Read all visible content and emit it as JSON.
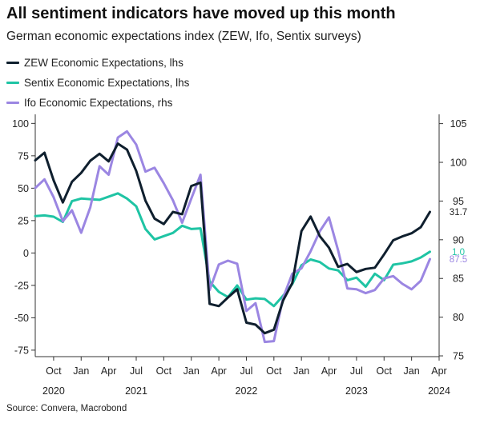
{
  "header": {
    "title": "All sentiment indicators have moved up this month",
    "subtitle": "German economic expectations index (ZEW, Ifo, Sentix surveys)"
  },
  "footer": {
    "source": "Source: Convera, Macrobond"
  },
  "colors": {
    "zew": "#0f1f2e",
    "sentix": "#1fc4a4",
    "ifo": "#9b86e2",
    "axis": "#333333"
  },
  "chart_data": {
    "type": "line",
    "x_range": [
      "2020-08",
      "2024-04"
    ],
    "x_ticks": [
      {
        "date": "2020-10",
        "label": "Oct",
        "year": "2020"
      },
      {
        "date": "2021-01",
        "label": "Jan"
      },
      {
        "date": "2021-04",
        "label": "Apr"
      },
      {
        "date": "2021-07",
        "label": "Jul",
        "year": "2021"
      },
      {
        "date": "2021-10",
        "label": "Oct"
      },
      {
        "date": "2022-01",
        "label": "Jan"
      },
      {
        "date": "2022-04",
        "label": "Apr"
      },
      {
        "date": "2022-07",
        "label": "Jul",
        "year": "2022"
      },
      {
        "date": "2022-10",
        "label": "Oct"
      },
      {
        "date": "2023-01",
        "label": "Jan"
      },
      {
        "date": "2023-04",
        "label": "Apr"
      },
      {
        "date": "2023-07",
        "label": "Jul",
        "year": "2023"
      },
      {
        "date": "2023-10",
        "label": "Oct"
      },
      {
        "date": "2024-01",
        "label": "Jan"
      },
      {
        "date": "2024-04",
        "label": "Apr",
        "year": "2024"
      }
    ],
    "y_left": {
      "range": [
        -80,
        107
      ],
      "ticks": [
        100,
        75,
        50,
        25,
        0,
        -25,
        -50,
        -75
      ]
    },
    "y_right": {
      "range": [
        74.9,
        106.2
      ],
      "ticks": [
        105,
        100,
        95,
        90,
        85,
        80,
        75
      ]
    },
    "series": [
      {
        "name": "ZEW Economic Expectations, lhs",
        "axis": "left",
        "color_key": "zew",
        "end_label": "31.7",
        "points": [
          [
            "2020-08",
            71.5
          ],
          [
            "2020-09",
            77.4
          ],
          [
            "2020-10",
            56.1
          ],
          [
            "2020-11",
            39.0
          ],
          [
            "2020-12",
            55.0
          ],
          [
            "2021-01",
            61.8
          ],
          [
            "2021-02",
            71.2
          ],
          [
            "2021-03",
            76.6
          ],
          [
            "2021-04",
            70.7
          ],
          [
            "2021-05",
            84.4
          ],
          [
            "2021-06",
            79.8
          ],
          [
            "2021-07",
            63.3
          ],
          [
            "2021-08",
            40.4
          ],
          [
            "2021-09",
            26.5
          ],
          [
            "2021-10",
            22.3
          ],
          [
            "2021-11",
            31.7
          ],
          [
            "2021-12",
            29.9
          ],
          [
            "2022-01",
            51.7
          ],
          [
            "2022-02",
            54.3
          ],
          [
            "2022-03",
            -39.3
          ],
          [
            "2022-04",
            -41.0
          ],
          [
            "2022-05",
            -34.3
          ],
          [
            "2022-06",
            -28.0
          ],
          [
            "2022-07",
            -53.8
          ],
          [
            "2022-08",
            -55.3
          ],
          [
            "2022-09",
            -61.9
          ],
          [
            "2022-10",
            -59.2
          ],
          [
            "2022-11",
            -36.7
          ],
          [
            "2022-12",
            -23.3
          ],
          [
            "2023-01",
            16.9
          ],
          [
            "2023-02",
            28.1
          ],
          [
            "2023-03",
            13.0
          ],
          [
            "2023-04",
            4.1
          ],
          [
            "2023-05",
            -10.7
          ],
          [
            "2023-06",
            -8.5
          ],
          [
            "2023-07",
            -14.7
          ],
          [
            "2023-08",
            -12.3
          ],
          [
            "2023-09",
            -11.4
          ],
          [
            "2023-10",
            -1.1
          ],
          [
            "2023-11",
            9.8
          ],
          [
            "2023-12",
            12.8
          ],
          [
            "2024-01",
            15.2
          ],
          [
            "2024-02",
            19.9
          ],
          [
            "2024-03",
            31.7
          ]
        ]
      },
      {
        "name": "Sentix Economic Expectations, lhs",
        "axis": "left",
        "color_key": "sentix",
        "end_label": "1.0",
        "points": [
          [
            "2020-08",
            28.5
          ],
          [
            "2020-09",
            29.0
          ],
          [
            "2020-10",
            28.0
          ],
          [
            "2020-11",
            24.0
          ],
          [
            "2020-12",
            40.0
          ],
          [
            "2021-01",
            42.0
          ],
          [
            "2021-02",
            41.5
          ],
          [
            "2021-03",
            41.0
          ],
          [
            "2021-04",
            43.5
          ],
          [
            "2021-05",
            46.0
          ],
          [
            "2021-06",
            42.0
          ],
          [
            "2021-07",
            36.0
          ],
          [
            "2021-08",
            18.5
          ],
          [
            "2021-09",
            10.5
          ],
          [
            "2021-10",
            13.0
          ],
          [
            "2021-11",
            15.5
          ],
          [
            "2021-12",
            21.0
          ],
          [
            "2022-01",
            18.5
          ],
          [
            "2022-02",
            19.0
          ],
          [
            "2022-03",
            -22.0
          ],
          [
            "2022-04",
            -30.0
          ],
          [
            "2022-05",
            -34.0
          ],
          [
            "2022-06",
            -25.0
          ],
          [
            "2022-07",
            -36.0
          ],
          [
            "2022-08",
            -35.0
          ],
          [
            "2022-09",
            -35.5
          ],
          [
            "2022-10",
            -41.0
          ],
          [
            "2022-11",
            -33.0
          ],
          [
            "2022-12",
            -24.0
          ],
          [
            "2023-01",
            -9.5
          ],
          [
            "2023-02",
            -5.0
          ],
          [
            "2023-03",
            -7.0
          ],
          [
            "2023-04",
            -12.0
          ],
          [
            "2023-05",
            -13.5
          ],
          [
            "2023-06",
            -21.0
          ],
          [
            "2023-07",
            -19.0
          ],
          [
            "2023-08",
            -26.0
          ],
          [
            "2023-09",
            -16.0
          ],
          [
            "2023-10",
            -21.0
          ],
          [
            "2023-11",
            -9.0
          ],
          [
            "2023-12",
            -8.0
          ],
          [
            "2024-01",
            -6.5
          ],
          [
            "2024-02",
            -3.5
          ],
          [
            "2024-03",
            1.0
          ]
        ]
      },
      {
        "name": "Ifo Economic Expectations, rhs",
        "axis": "right",
        "color_key": "ifo",
        "end_label": "87.5",
        "points": [
          [
            "2020-08",
            96.7
          ],
          [
            "2020-09",
            97.8
          ],
          [
            "2020-10",
            95.5
          ],
          [
            "2020-11",
            92.4
          ],
          [
            "2020-12",
            93.8
          ],
          [
            "2021-01",
            90.9
          ],
          [
            "2021-02",
            94.2
          ],
          [
            "2021-03",
            99.5
          ],
          [
            "2021-04",
            98.4
          ],
          [
            "2021-05",
            103.2
          ],
          [
            "2021-06",
            104.0
          ],
          [
            "2021-07",
            102.3
          ],
          [
            "2021-08",
            98.8
          ],
          [
            "2021-09",
            99.3
          ],
          [
            "2021-10",
            97.3
          ],
          [
            "2021-11",
            95.1
          ],
          [
            "2021-12",
            92.2
          ],
          [
            "2022-01",
            95.3
          ],
          [
            "2022-02",
            98.4
          ],
          [
            "2022-03",
            83.5
          ],
          [
            "2022-04",
            86.8
          ],
          [
            "2022-05",
            87.3
          ],
          [
            "2022-06",
            86.9
          ],
          [
            "2022-07",
            80.8
          ],
          [
            "2022-08",
            81.8
          ],
          [
            "2022-09",
            76.8
          ],
          [
            "2022-10",
            76.9
          ],
          [
            "2022-11",
            82.5
          ],
          [
            "2022-12",
            85.6
          ],
          [
            "2023-01",
            86.3
          ],
          [
            "2023-02",
            88.5
          ],
          [
            "2023-03",
            91.1
          ],
          [
            "2023-04",
            92.9
          ],
          [
            "2023-05",
            88.6
          ],
          [
            "2023-06",
            83.7
          ],
          [
            "2023-07",
            83.6
          ],
          [
            "2023-08",
            83.1
          ],
          [
            "2023-09",
            83.5
          ],
          [
            "2023-10",
            85.0
          ],
          [
            "2023-11",
            85.3
          ],
          [
            "2023-12",
            84.3
          ],
          [
            "2024-01",
            83.6
          ],
          [
            "2024-02",
            84.7
          ],
          [
            "2024-03",
            87.5
          ]
        ]
      }
    ]
  }
}
